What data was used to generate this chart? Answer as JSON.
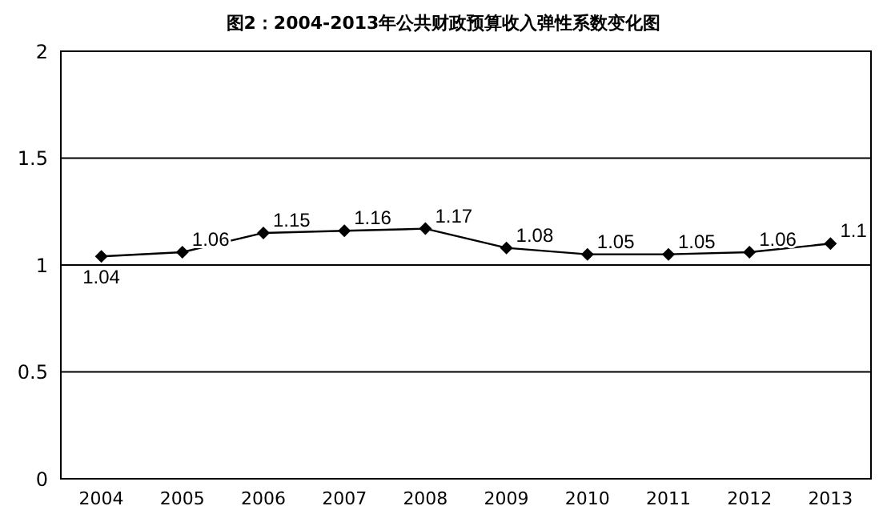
{
  "chart_data": {
    "type": "line",
    "title": "图2：2004-2013年公共财政预算收入弹性系数变化图",
    "categories": [
      "2004",
      "2005",
      "2006",
      "2007",
      "2008",
      "2009",
      "2010",
      "2011",
      "2012",
      "2013"
    ],
    "series": [
      {
        "color": "#000000",
        "values": [
          1.04,
          1.06,
          1.15,
          1.16,
          1.17,
          1.08,
          1.05,
          1.05,
          1.06,
          1.1
        ]
      }
    ],
    "ylim": [
      0,
      2
    ],
    "yticks": [
      0,
      0.5,
      1,
      1.5,
      2
    ],
    "grid": "y",
    "legend": false,
    "marker": "diamond",
    "line_style": "solid",
    "data_labels": true
  }
}
